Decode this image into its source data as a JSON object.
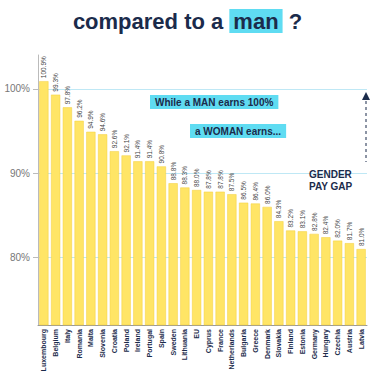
{
  "chart_data": {
    "type": "bar",
    "title": "compared to a man ?",
    "annotations": [
      "While a MAN earns 100%",
      "a WOMAN earns...",
      "GENDER PAY GAP"
    ],
    "categories": [
      "Luxembourg",
      "Belgium",
      "Italy",
      "Romania",
      "Malta",
      "Slovenia",
      "Croatia",
      "Poland",
      "Ireland",
      "Portugal",
      "Spain",
      "Sweden",
      "Lithuania",
      "EU",
      "Cyprus",
      "France",
      "Netherlands",
      "Bulgaria",
      "Greece",
      "Denmark",
      "Slovakia",
      "Finland",
      "Estonia",
      "Germany",
      "Hungary",
      "Czechia",
      "Austria",
      "Latvia"
    ],
    "values": [
      100.9,
      99.3,
      97.8,
      96.2,
      94.9,
      94.6,
      92.6,
      92.1,
      91.4,
      91.4,
      90.8,
      88.8,
      88.3,
      88.0,
      87.8,
      87.8,
      87.5,
      86.5,
      86.4,
      86.0,
      84.3,
      83.2,
      83.1,
      82.8,
      82.4,
      82.0,
      81.7,
      81.0
    ],
    "value_labels": [
      "100.9%",
      "99.3%",
      "97.8%",
      "96.2%",
      "94.9%",
      "94.6%",
      "92.6%",
      "92.1%",
      "91.4%",
      "91.4%",
      "90.8%",
      "88.8%",
      "88.3%",
      "88.0%",
      "87.8%",
      "87.8%",
      "87.5%",
      "86.5%",
      "86.4%",
      "86.0%",
      "84.3%",
      "83.2%",
      "83.1%",
      "82.8%",
      "82.4%",
      "82.0%",
      "81.7%",
      "81.0%"
    ],
    "color": "#ffe566",
    "ylim": [
      72,
      104
    ],
    "yticks": [
      {
        "value": 80,
        "label": "80%"
      },
      {
        "value": 90,
        "label": "90%"
      },
      {
        "value": 100,
        "label": "100%"
      }
    ],
    "grid": true,
    "data_labels": true
  }
}
